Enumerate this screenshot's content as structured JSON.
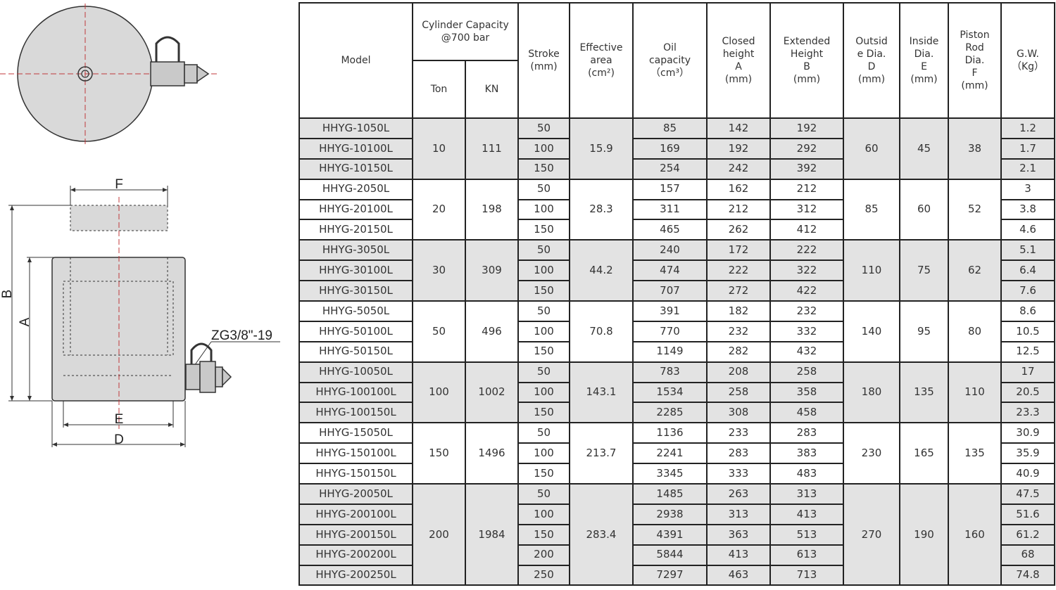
{
  "drawing": {
    "labels": {
      "F": "F",
      "B": "B",
      "A": "A",
      "E": "E",
      "D": "D",
      "port": "ZG3/8\"-19"
    },
    "colors": {
      "body": "#d9d9d9",
      "centerline": "#c0393b",
      "outline": "#333333"
    }
  },
  "table": {
    "headers": {
      "model": "Model",
      "capacity": "Cylinder Capacity\n@700 bar",
      "ton": "Ton",
      "kn": "KN",
      "stroke": "Stroke\n(mm)",
      "area": "Effective\narea\n(cm²)",
      "oil": "Oil\ncapacity\n（cm³）",
      "closed": "Closed\nheight\nA\n(mm)",
      "extended": "Extended\nHeight\nB\n(mm)",
      "outside": "Outsid\ne Dia.\nD\n(mm)",
      "inside": "Inside\nDia.\nE\n(mm)",
      "rod": "Piston\nRod\nDia.\nF\n(mm)",
      "gw": "G.W.\n（Kg）"
    },
    "shade_colors": {
      "gray": "#e3e3e3",
      "white": "#ffffff"
    },
    "groups": [
      {
        "ton": "10",
        "kn": "111",
        "area": "15.9",
        "outside": "60",
        "inside": "45",
        "rod": "38",
        "shaded": true,
        "rows": [
          {
            "model": "HHYG-1050L",
            "stroke": "50",
            "oil": "85",
            "closed": "142",
            "extended": "192",
            "gw": "1.2"
          },
          {
            "model": "HHYG-10100L",
            "stroke": "100",
            "oil": "169",
            "closed": "192",
            "extended": "292",
            "gw": "1.7"
          },
          {
            "model": "HHYG-10150L",
            "stroke": "150",
            "oil": "254",
            "closed": "242",
            "extended": "392",
            "gw": "2.1"
          }
        ]
      },
      {
        "ton": "20",
        "kn": "198",
        "area": "28.3",
        "outside": "85",
        "inside": "60",
        "rod": "52",
        "shaded": false,
        "rows": [
          {
            "model": "HHYG-2050L",
            "stroke": "50",
            "oil": "157",
            "closed": "162",
            "extended": "212",
            "gw": "3"
          },
          {
            "model": "HHYG-20100L",
            "stroke": "100",
            "oil": "311",
            "closed": "212",
            "extended": "312",
            "gw": "3.8"
          },
          {
            "model": "HHYG-20150L",
            "stroke": "150",
            "oil": "465",
            "closed": "262",
            "extended": "412",
            "gw": "4.6"
          }
        ]
      },
      {
        "ton": "30",
        "kn": "309",
        "area": "44.2",
        "outside": "110",
        "inside": "75",
        "rod": "62",
        "shaded": true,
        "rows": [
          {
            "model": "HHYG-3050L",
            "stroke": "50",
            "oil": "240",
            "closed": "172",
            "extended": "222",
            "gw": "5.1"
          },
          {
            "model": "HHYG-30100L",
            "stroke": "100",
            "oil": "474",
            "closed": "222",
            "extended": "322",
            "gw": "6.4"
          },
          {
            "model": "HHYG-30150L",
            "stroke": "150",
            "oil": "707",
            "closed": "272",
            "extended": "422",
            "gw": "7.6"
          }
        ]
      },
      {
        "ton": "50",
        "kn": "496",
        "area": "70.8",
        "outside": "140",
        "inside": "95",
        "rod": "80",
        "shaded": false,
        "rows": [
          {
            "model": "HHYG-5050L",
            "stroke": "50",
            "oil": "391",
            "closed": "182",
            "extended": "232",
            "gw": "8.6"
          },
          {
            "model": "HHYG-50100L",
            "stroke": "100",
            "oil": "770",
            "closed": "232",
            "extended": "332",
            "gw": "10.5"
          },
          {
            "model": "HHYG-50150L",
            "stroke": "150",
            "oil": "1149",
            "closed": "282",
            "extended": "432",
            "gw": "12.5"
          }
        ]
      },
      {
        "ton": "100",
        "kn": "1002",
        "area": "143.1",
        "outside": "180",
        "inside": "135",
        "rod": "110",
        "shaded": true,
        "rows": [
          {
            "model": "HHYG-10050L",
            "stroke": "50",
            "oil": "783",
            "closed": "208",
            "extended": "258",
            "gw": "17"
          },
          {
            "model": "HHYG-100100L",
            "stroke": "100",
            "oil": "1534",
            "closed": "258",
            "extended": "358",
            "gw": "20.5"
          },
          {
            "model": "HHYG-100150L",
            "stroke": "150",
            "oil": "2285",
            "closed": "308",
            "extended": "458",
            "gw": "23.3"
          }
        ]
      },
      {
        "ton": "150",
        "kn": "1496",
        "area": "213.7",
        "outside": "230",
        "inside": "165",
        "rod": "135",
        "shaded": false,
        "rows": [
          {
            "model": "HHYG-15050L",
            "stroke": "50",
            "oil": "1136",
            "closed": "233",
            "extended": "283",
            "gw": "30.9"
          },
          {
            "model": "HHYG-150100L",
            "stroke": "100",
            "oil": "2241",
            "closed": "283",
            "extended": "383",
            "gw": "35.9"
          },
          {
            "model": "HHYG-150150L",
            "stroke": "150",
            "oil": "3345",
            "closed": "333",
            "extended": "483",
            "gw": "40.9"
          }
        ]
      },
      {
        "ton": "200",
        "kn": "1984",
        "area": "283.4",
        "outside": "270",
        "inside": "190",
        "rod": "160",
        "shaded": true,
        "rows": [
          {
            "model": "HHYG-20050L",
            "stroke": "50",
            "oil": "1485",
            "closed": "263",
            "extended": "313",
            "gw": "47.5"
          },
          {
            "model": "HHYG-200100L",
            "stroke": "100",
            "oil": "2938",
            "closed": "313",
            "extended": "413",
            "gw": "51.6"
          },
          {
            "model": "HHYG-200150L",
            "stroke": "150",
            "oil": "4391",
            "closed": "363",
            "extended": "513",
            "gw": "61.2"
          },
          {
            "model": "HHYG-200200L",
            "stroke": "200",
            "oil": "5844",
            "closed": "413",
            "extended": "613",
            "gw": "68"
          },
          {
            "model": "HHYG-200250L",
            "stroke": "250",
            "oil": "7297",
            "closed": "463",
            "extended": "713",
            "gw": "74.8"
          }
        ]
      }
    ]
  }
}
